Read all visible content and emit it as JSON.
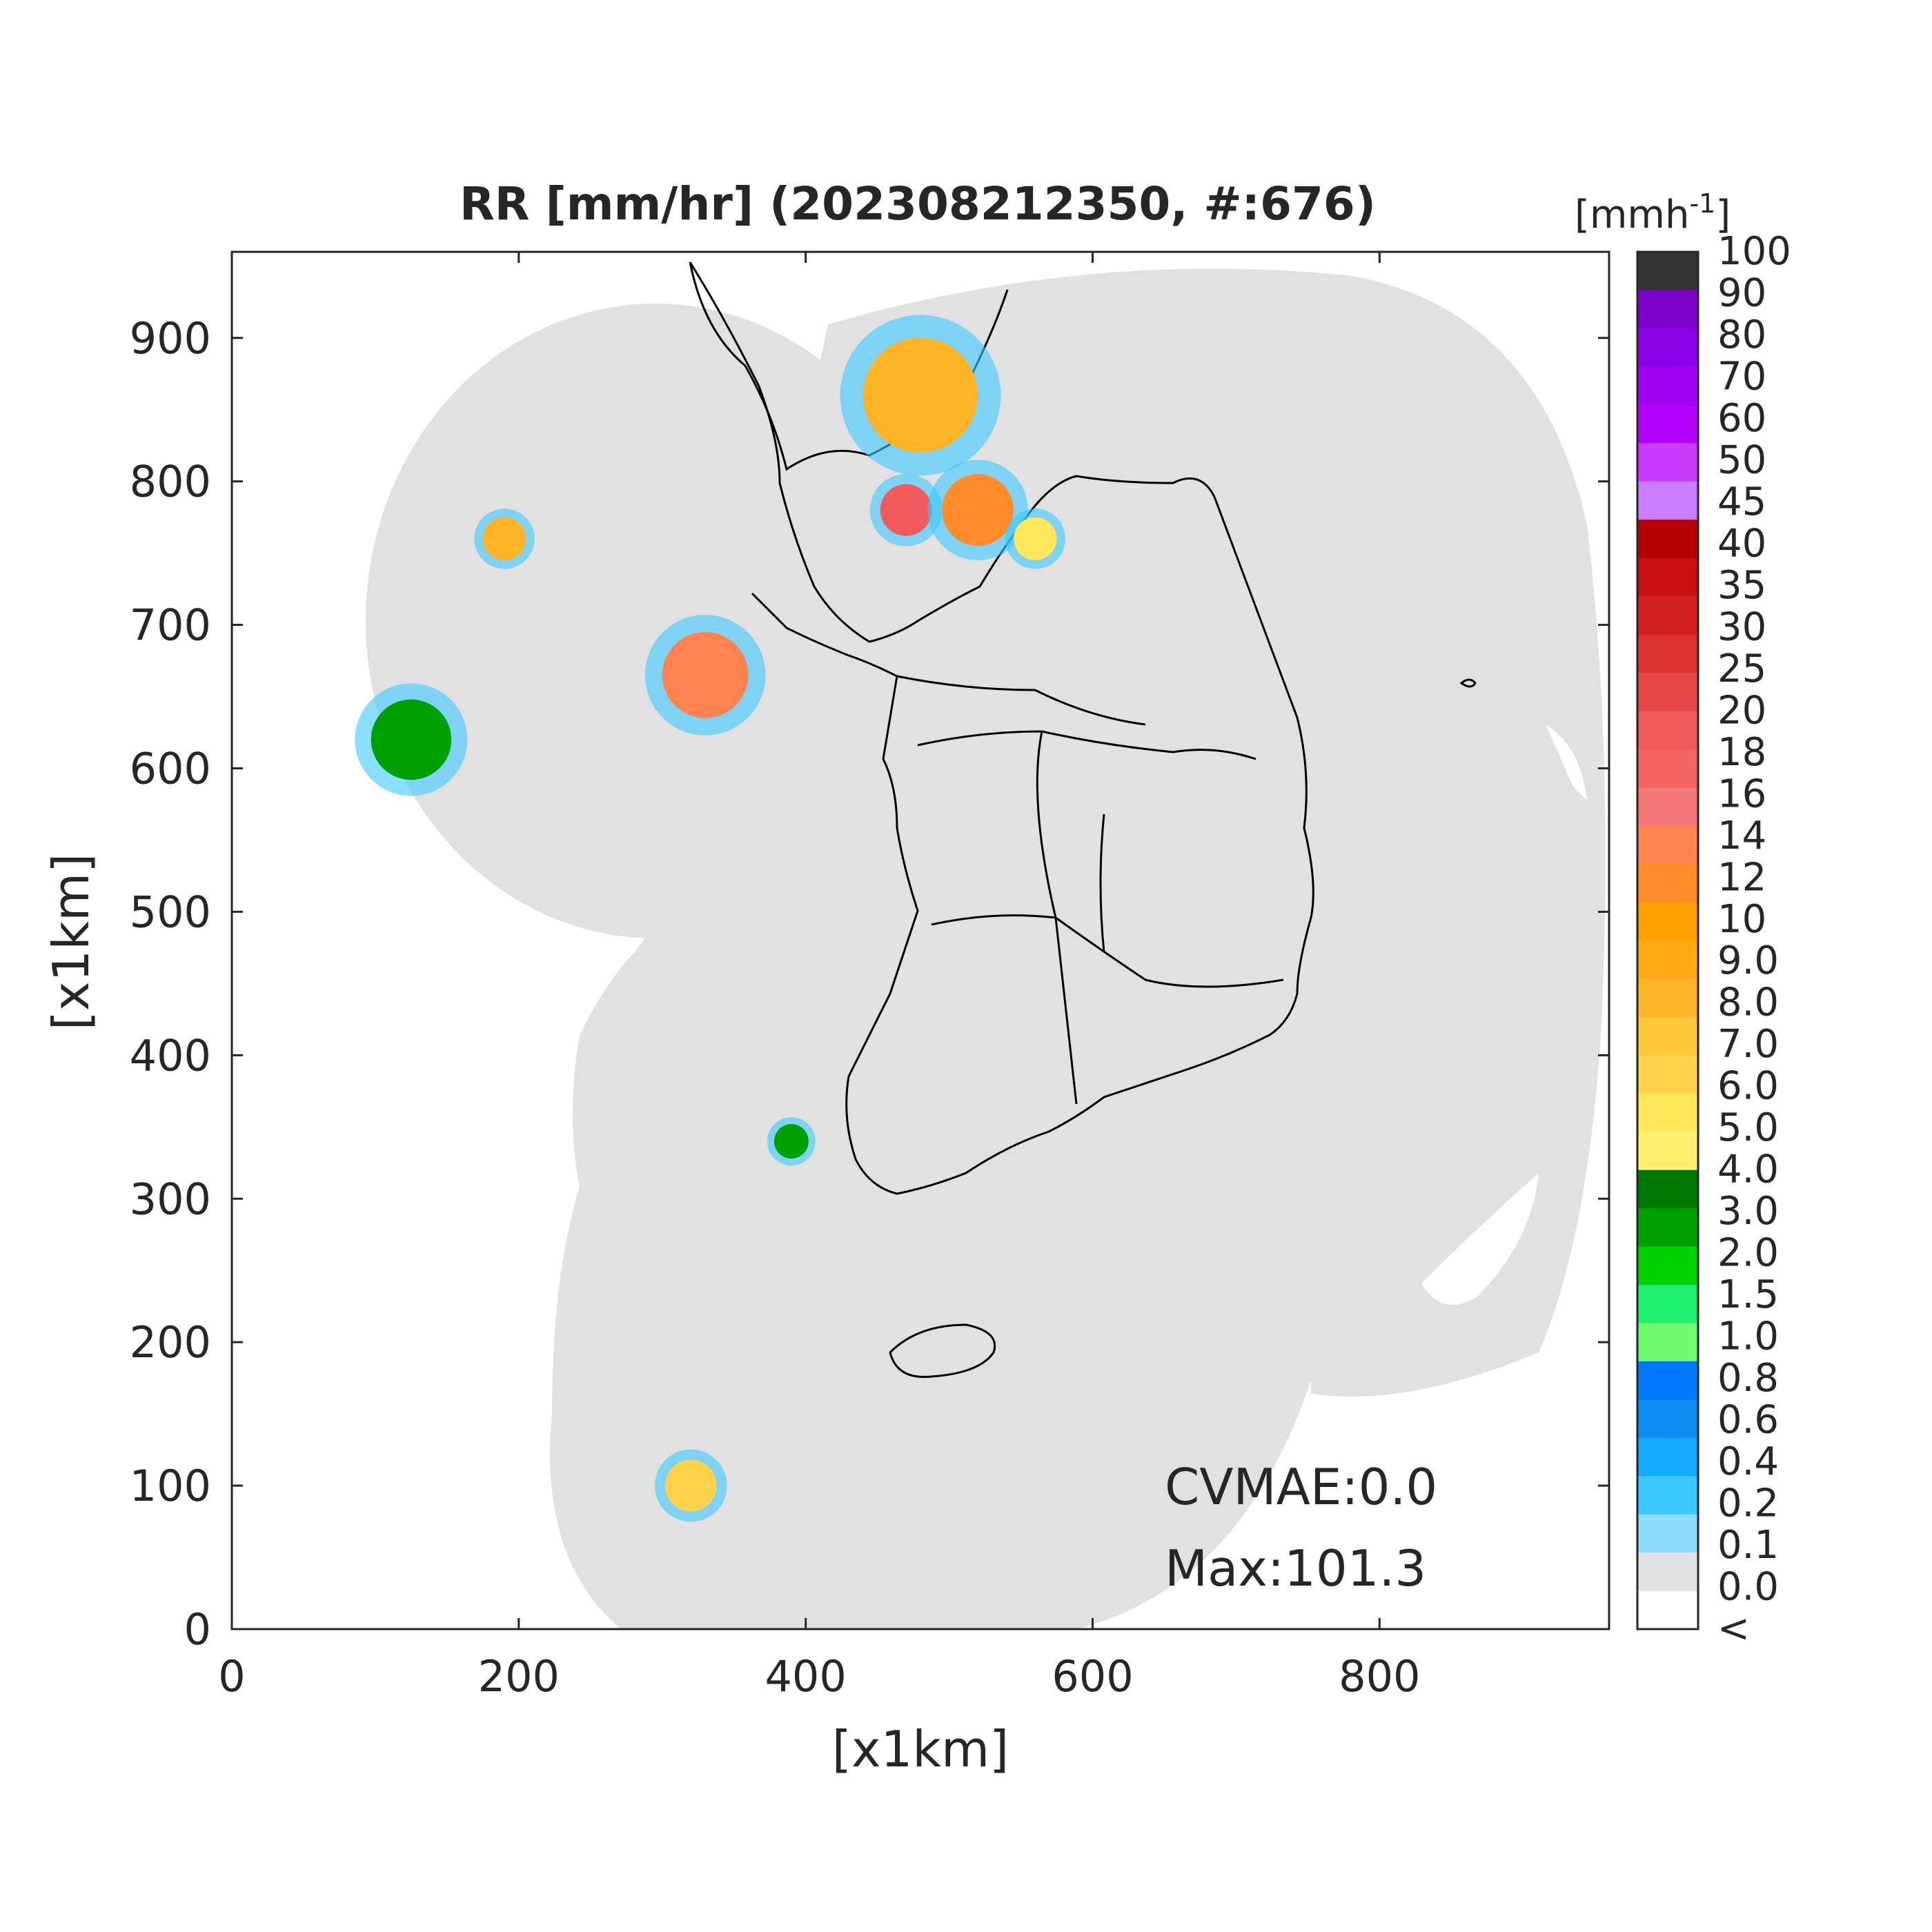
{
  "title": "RR [mm/hr] (202308212350, #:676)",
  "chart_data": {
    "type": "heatmap",
    "title": "RR [mm/hr] (202308212350, #:676)",
    "xlabel": "[x1km]",
    "ylabel": "[x1km]",
    "xlim": [
      0,
      960
    ],
    "ylim": [
      0,
      960
    ],
    "x_ticks": [
      "0",
      "200",
      "400",
      "600",
      "800"
    ],
    "y_ticks": [
      "0",
      "100",
      "200",
      "300",
      "400",
      "500",
      "600",
      "700",
      "800",
      "900"
    ],
    "colorbar": {
      "unit_label": "[mmh",
      "unit_exponent": "-1",
      "unit_close": "]",
      "labels": [
        "100",
        "90",
        "80",
        "70",
        "60",
        "50",
        "45",
        "40",
        "35",
        "30",
        "25",
        "20",
        "18",
        "16",
        "14",
        "12",
        "10",
        "9.0",
        "8.0",
        "7.0",
        "6.0",
        "5.0",
        "4.0",
        "3.0",
        "2.0",
        "1.5",
        "1.0",
        "0.8",
        "0.6",
        "0.4",
        "0.2",
        "0.1",
        "0.0",
        "<"
      ],
      "colors": [
        "#333333",
        "#7d00c8",
        "#8c00e6",
        "#a000f0",
        "#b400ff",
        "#c83cff",
        "#c87dff",
        "#b40000",
        "#c80f0f",
        "#d21e1e",
        "#dc3232",
        "#e64646",
        "#f05a5a",
        "#f56464",
        "#f57878",
        "#ff8250",
        "#ff8c28",
        "#ffa000",
        "#ffaa14",
        "#ffb428",
        "#ffc83c",
        "#ffd24b",
        "#ffe65a",
        "#fff06e",
        "#007800",
        "#00a000",
        "#00d200",
        "#1ef06e",
        "#6efa6e",
        "#0078ff",
        "#0a8cf0",
        "#14aaff",
        "#3cc8ff",
        "#8cdcff",
        "#e1e1e1",
        "#ffffff"
      ]
    },
    "annotations": {
      "cvmae": "CVMAE:0.0",
      "max": "Max:101.3"
    },
    "precip_cells": [
      {
        "x": 390,
        "y": 340,
        "r": 12,
        "level": "2.0"
      },
      {
        "x": 125,
        "y": 620,
        "r": 28,
        "level": "2.0"
      },
      {
        "x": 480,
        "y": 860,
        "r": 40,
        "level": "8.0"
      },
      {
        "x": 470,
        "y": 780,
        "r": 18,
        "level": "20"
      },
      {
        "x": 330,
        "y": 665,
        "r": 30,
        "level": "14"
      },
      {
        "x": 520,
        "y": 780,
        "r": 25,
        "level": "12"
      },
      {
        "x": 320,
        "y": 100,
        "r": 18,
        "level": "6.0"
      },
      {
        "x": 190,
        "y": 760,
        "r": 15,
        "level": "8.0"
      },
      {
        "x": 560,
        "y": 760,
        "r": 15,
        "level": "5.0"
      }
    ]
  }
}
